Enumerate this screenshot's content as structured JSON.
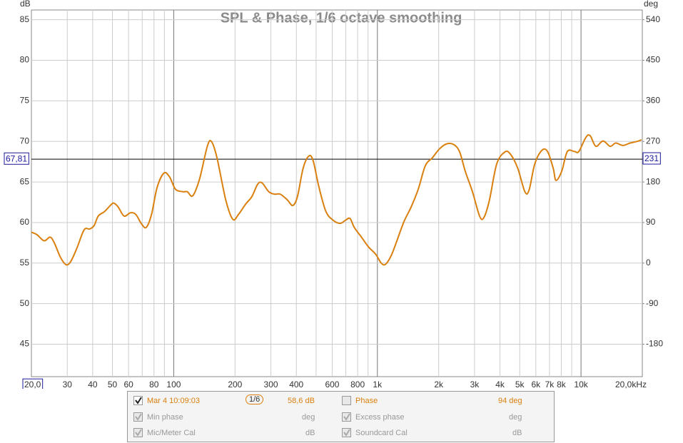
{
  "chart_data": {
    "type": "line",
    "title": "SPL & Phase, 1/6 octave smoothing",
    "y_label": "dB",
    "y2_label": "deg",
    "log_x": true,
    "grid": true,
    "xlim": [
      20,
      20000
    ],
    "ylim": [
      41,
      86.2
    ],
    "y2lim": [
      -252,
      561.6
    ],
    "xticks": [
      {
        "value": 20,
        "label": "20,0"
      },
      30,
      40,
      50,
      60,
      80,
      100,
      200,
      300,
      400,
      600,
      800,
      {
        "value": 1000,
        "label": "1k"
      },
      {
        "value": 2000,
        "label": "2k"
      },
      {
        "value": 3000,
        "label": "3k"
      },
      {
        "value": 4000,
        "label": "4k"
      },
      {
        "value": 5000,
        "label": "5k"
      },
      {
        "value": 6000,
        "label": "6k"
      },
      {
        "value": 7000,
        "label": "7k"
      },
      {
        "value": 8000,
        "label": "8k"
      },
      {
        "value": 10000,
        "label": "10k"
      },
      {
        "value": 20000,
        "label": "20,0kHz"
      }
    ],
    "xminor": [
      70,
      90,
      500,
      700,
      900,
      9000
    ],
    "yticks": [
      45,
      50,
      55,
      60,
      65,
      70,
      75,
      80,
      85
    ],
    "y2ticks": [
      -180,
      -90,
      0,
      90,
      180,
      270,
      360,
      450,
      540
    ],
    "cursor": {
      "y": {
        "value": 67.81,
        "label": "67,81"
      },
      "y2": {
        "value": 231,
        "label": "231"
      }
    },
    "x": [
      20,
      21.3,
      23.1,
      24.7,
      25.9,
      27.8,
      29.6,
      31.2,
      33.4,
      36.3,
      38.6,
      40.6,
      42.6,
      45.7,
      48.8,
      50.7,
      53.4,
      57,
      61.3,
      65.1,
      69.4,
      73.3,
      77.8,
      82.8,
      89.5,
      95.5,
      102,
      111,
      116.5,
      124,
      134,
      146,
      153,
      163,
      180,
      195,
      208,
      226,
      242,
      258,
      271,
      293,
      312,
      333,
      361,
      384,
      405,
      432,
      461,
      484,
      515,
      558,
      605,
      656,
      699,
      734,
      770,
      835,
      904,
      980,
      1045,
      1096,
      1168,
      1245,
      1350,
      1464,
      1587,
      1720,
      1865,
      2022,
      2192,
      2376,
      2535,
      2703,
      2930,
      3176,
      3333,
      3553,
      3852,
      4229,
      4508,
      4888,
      5300,
      5558,
      5925,
      6424,
      6850,
      7300,
      7536,
      8034,
      8565,
      9287,
      9750,
      10571,
      11091,
      11825,
      12820,
      13900,
      14815,
      16060,
      17420,
      18890,
      19820
    ],
    "series": [
      {
        "name": "Mar 4 10:09:03",
        "color": "#d9800f",
        "values": [
          58.8,
          58.5,
          57.75,
          58.2,
          57.5,
          55.7,
          54.8,
          55.2,
          56.8,
          59.1,
          59.2,
          59.6,
          60.8,
          61.35,
          62.1,
          62.4,
          61.9,
          60.8,
          61.2,
          61,
          59.85,
          59.4,
          61,
          64.3,
          66.1,
          65.6,
          64.1,
          63.8,
          63.8,
          63.3,
          65.4,
          69.35,
          70,
          68,
          62.8,
          60.4,
          61,
          62.3,
          63.2,
          64.7,
          64.9,
          63.8,
          63.5,
          63.5,
          62.8,
          62.1,
          63.2,
          66.7,
          68.2,
          67.6,
          64.5,
          61.4,
          60.3,
          59.9,
          60.3,
          60.5,
          59.4,
          58.2,
          57,
          56.1,
          55,
          54.85,
          55.9,
          57.7,
          60.1,
          61.9,
          64.1,
          67,
          68,
          69.1,
          69.7,
          69.6,
          68.7,
          66.3,
          63.8,
          60.8,
          60.6,
          62.8,
          67.2,
          68.7,
          68.4,
          66.7,
          63.8,
          64,
          67.2,
          68.9,
          68.75,
          66.7,
          65.2,
          66.3,
          68.75,
          68.75,
          68.75,
          70.5,
          70.7,
          69.4,
          70.05,
          69.4,
          69.8,
          69.5,
          69.8,
          70,
          70.2
        ]
      }
    ],
    "legend_panel": {
      "smoothing": "1/6",
      "spl_readout": "58,6 dB",
      "phase": "Phase",
      "phase_readout": "94 deg",
      "min_phase": "Min phase",
      "min_phase_unit": "deg",
      "excess_phase": "Excess phase",
      "excess_phase_unit": "deg",
      "mic_cal": "Mic/Meter Cal",
      "mic_cal_unit": "dB",
      "soundcard_cal": "Soundcard Cal",
      "soundcard_cal_unit": "dB"
    }
  }
}
